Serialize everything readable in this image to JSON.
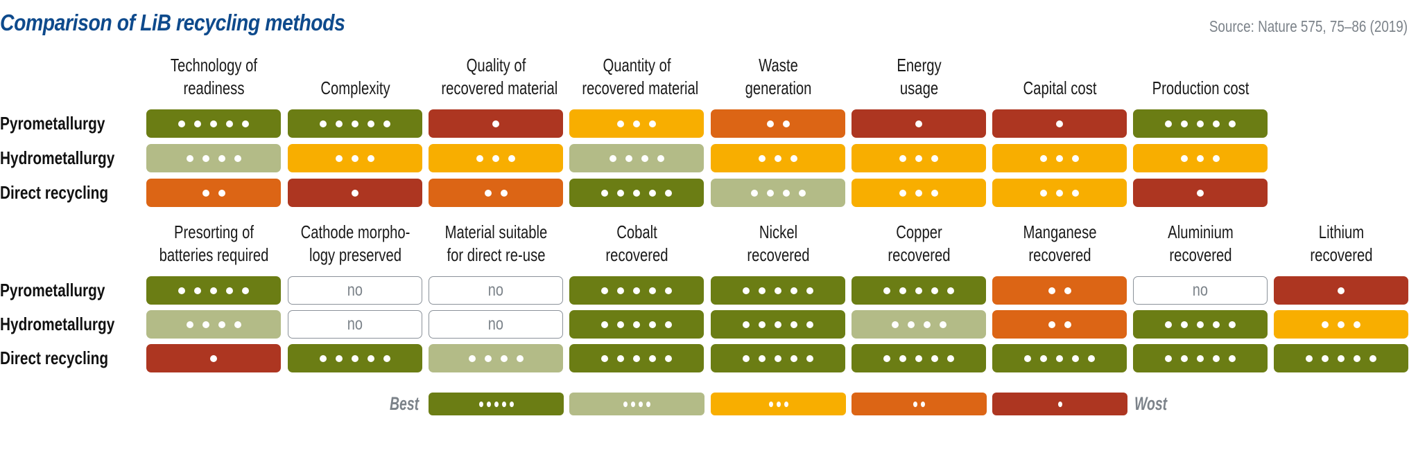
{
  "title": "Comparison of LiB recycling methods",
  "source": "Source: Nature 575, 75–86 (2019)",
  "colors": {
    "5": "#6b7d14",
    "4": "#b3bb87",
    "3": "#f8ae00",
    "2": "#dc6515",
    "1": "#ad3621",
    "no": "#ffffff"
  },
  "methods": [
    "Pyrometallurgy",
    "Hydrometallurgy",
    "Direct recycling"
  ],
  "chart_data": {
    "type": "table",
    "title": "Comparison of LiB recycling methods",
    "source": "Source: Nature 575, 75–86 (2019)",
    "scale": "1 (worst) to 5 (best) dots; 'no' = not applicable / not achieved",
    "rows": [
      "Pyrometallurgy",
      "Hydrometallurgy",
      "Direct recycling"
    ],
    "blocks": [
      {
        "columns": [
          [
            "Technology of",
            "readiness"
          ],
          [
            "",
            "Complexity"
          ],
          [
            "Quality of",
            "recovered material"
          ],
          [
            "Quantity of",
            "recovered material"
          ],
          [
            "Waste",
            "generation"
          ],
          [
            "Energy",
            "usage"
          ],
          [
            "",
            "Capital cost"
          ],
          [
            "",
            "Production cost"
          ]
        ],
        "values": [
          [
            5,
            5,
            1,
            3,
            2,
            1,
            1,
            5
          ],
          [
            4,
            3,
            3,
            4,
            3,
            3,
            3,
            3
          ],
          [
            2,
            1,
            2,
            5,
            4,
            3,
            3,
            1
          ]
        ]
      },
      {
        "columns": [
          [
            "Presorting of",
            "batteries required"
          ],
          [
            "Cathode morpho-",
            "logy preserved"
          ],
          [
            "Material suitable",
            "for direct re-use"
          ],
          [
            "Cobalt",
            "recovered"
          ],
          [
            "Nickel",
            "recovered"
          ],
          [
            "Copper",
            "recovered"
          ],
          [
            "Manganese",
            "recovered"
          ],
          [
            "Aluminium",
            "recovered"
          ],
          [
            "Lithium",
            "recovered"
          ]
        ],
        "values": [
          [
            5,
            "no",
            "no",
            5,
            5,
            5,
            2,
            "no",
            1
          ],
          [
            4,
            "no",
            "no",
            5,
            5,
            4,
            2,
            5,
            3
          ],
          [
            1,
            5,
            4,
            5,
            5,
            5,
            5,
            5,
            5
          ]
        ]
      }
    ],
    "legend": {
      "left_label": "Best",
      "right_label": "Wost",
      "levels": [
        5,
        4,
        3,
        2,
        1
      ]
    }
  },
  "no_label": "no"
}
